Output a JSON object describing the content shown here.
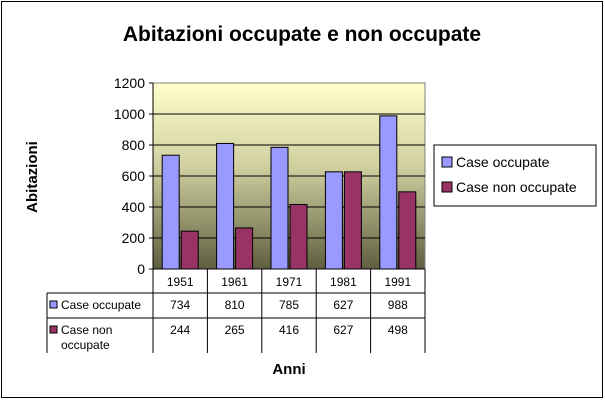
{
  "chart_data": {
    "type": "bar",
    "title": "Abitazioni occupate e non occupate",
    "xlabel": "Anni",
    "ylabel": "Abitazioni",
    "categories": [
      "1951",
      "1961",
      "1971",
      "1981",
      "1991"
    ],
    "series": [
      {
        "name": "Case occupate",
        "table_label": [
          "Case occupate"
        ],
        "color": "#9999FF",
        "values": [
          734,
          810,
          785,
          627,
          988
        ]
      },
      {
        "name": "Case non occupate",
        "table_label": [
          "Case non",
          "occupate"
        ],
        "color": "#993366",
        "values": [
          244,
          265,
          416,
          627,
          498
        ]
      }
    ],
    "ylim": [
      0,
      1200
    ],
    "yticks": [
      0,
      200,
      400,
      600,
      800,
      1000,
      1200
    ],
    "grid": true,
    "legend": "right",
    "plot_background": "gradient light yellow to dark olive",
    "data_table": true
  }
}
